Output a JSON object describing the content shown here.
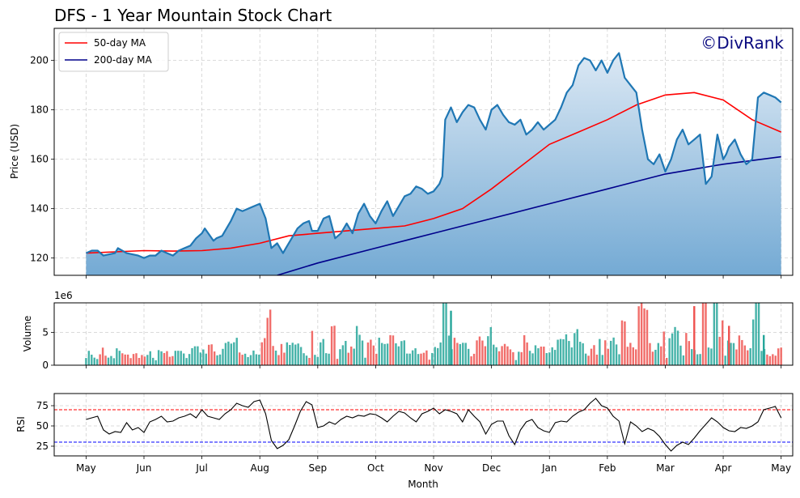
{
  "chart_data": [
    {
      "type": "area",
      "panel": "price",
      "title": "DFS - 1 Year Mountain Stock Chart",
      "watermark": "©DivRank",
      "ylabel": "Price (USD)",
      "ylim": [
        113,
        213
      ],
      "yticks": [
        120,
        140,
        160,
        180,
        200
      ],
      "xlim": [
        -0.55,
        12.2
      ],
      "grid": true,
      "legend_position": "top-left",
      "legend": [
        "50-day MA",
        "200-day MA"
      ],
      "colors": {
        "price": "#1f77b4",
        "ma50": "#ff0000",
        "ma200": "#00008b",
        "fill_top": "#dbe8f4",
        "fill_bottom": "#74aad4"
      },
      "series": [
        {
          "name": "Price",
          "x": [
            0,
            0.1,
            0.2,
            0.3,
            0.5,
            0.55,
            0.7,
            0.9,
            1.0,
            1.1,
            1.2,
            1.3,
            1.4,
            1.5,
            1.6,
            1.7,
            1.8,
            1.9,
            2.0,
            2.05,
            2.2,
            2.25,
            2.35,
            2.5,
            2.6,
            2.7,
            2.9,
            3.0,
            3.1,
            3.2,
            3.3,
            3.4,
            3.45,
            3.55,
            3.65,
            3.75,
            3.85,
            3.9,
            4.0,
            4.1,
            4.2,
            4.3,
            4.4,
            4.5,
            4.6,
            4.7,
            4.8,
            4.9,
            5.0,
            5.1,
            5.2,
            5.3,
            5.4,
            5.5,
            5.6,
            5.7,
            5.8,
            5.9,
            6.0,
            6.1,
            6.15,
            6.2,
            6.3,
            6.4,
            6.5,
            6.6,
            6.7,
            6.8,
            6.9,
            7.0,
            7.1,
            7.2,
            7.3,
            7.4,
            7.5,
            7.6,
            7.7,
            7.8,
            7.9,
            8.0,
            8.1,
            8.2,
            8.3,
            8.4,
            8.5,
            8.6,
            8.7,
            8.8,
            8.9,
            9.0,
            9.1,
            9.2,
            9.3,
            9.4,
            9.5,
            9.6,
            9.7,
            9.8,
            9.9,
            10.0,
            10.1,
            10.2,
            10.3,
            10.4,
            10.5,
            10.6,
            10.7,
            10.8,
            10.9,
            11.0,
            11.05,
            11.1,
            11.2,
            11.3,
            11.4,
            11.5,
            11.6,
            11.7,
            11.8,
            11.9,
            12.0
          ],
          "values": [
            122,
            123,
            123,
            121,
            122,
            124,
            122,
            121,
            120,
            121,
            121,
            123,
            122,
            121,
            123,
            124,
            125,
            128,
            130,
            132,
            127,
            128,
            129,
            135,
            140,
            139,
            141,
            142,
            136,
            124,
            126,
            122,
            124,
            128,
            132,
            134,
            135,
            131,
            131,
            136,
            137,
            128,
            130,
            134,
            130,
            138,
            142,
            137,
            134,
            139,
            143,
            137,
            141,
            145,
            146,
            149,
            148,
            146,
            147,
            150,
            153,
            176,
            181,
            175,
            179,
            182,
            181,
            176,
            172,
            180,
            182,
            178,
            175,
            174,
            176,
            170,
            172,
            175,
            172,
            174,
            176,
            181,
            187,
            190,
            198,
            201,
            200,
            196,
            200,
            195,
            200,
            203,
            193,
            190,
            187,
            172,
            160,
            158,
            162,
            155,
            160,
            168,
            172,
            166,
            168,
            170,
            150,
            153,
            170,
            160,
            162,
            165,
            168,
            162,
            158,
            160,
            185,
            187,
            186,
            185,
            183
          ]
        },
        {
          "name": "50-day MA",
          "x": [
            0,
            0.5,
            1.0,
            1.5,
            2.0,
            2.5,
            3.0,
            3.5,
            4.0,
            4.5,
            5.0,
            5.5,
            6.0,
            6.5,
            7.0,
            7.5,
            8.0,
            8.5,
            9.0,
            9.5,
            10.0,
            10.5,
            11.0,
            11.5,
            12.0
          ],
          "values": [
            122,
            122.5,
            123,
            122.8,
            123,
            124,
            126,
            129,
            130,
            131,
            132,
            133,
            136,
            140,
            148,
            157,
            166,
            171,
            176,
            182,
            186,
            187,
            184,
            176,
            171
          ]
        },
        {
          "name": "200-day MA",
          "x": [
            3.3,
            4.0,
            5.0,
            6.0,
            7.0,
            8.0,
            9.0,
            10.0,
            11.0,
            12.0
          ],
          "values": [
            113,
            118,
            124,
            130,
            136,
            142,
            148,
            154,
            158,
            161
          ]
        }
      ]
    },
    {
      "type": "bar",
      "panel": "volume",
      "ylabel": "Volume",
      "exponent_label": "1e6",
      "ylim": [
        0,
        9.5
      ],
      "yticks": [
        0,
        5
      ],
      "grid": true,
      "colors": {
        "up": "#26a69a",
        "down": "#ef5350"
      },
      "notable_values": [
        {
          "x": 6.3,
          "value": 8.3
        },
        {
          "x": 10.5,
          "value": 9.0
        },
        {
          "x": 11.1,
          "value": 6.0
        },
        {
          "x": 11.7,
          "value": 4.6
        }
      ]
    },
    {
      "type": "line",
      "panel": "rsi",
      "ylabel": "RSI",
      "xlabel": "Month",
      "ylim": [
        13,
        90
      ],
      "yticks": [
        25,
        50,
        75
      ],
      "overbought": 70,
      "oversold": 30,
      "grid": true,
      "colors": {
        "rsi": "#000000",
        "overbought": "#ff0000",
        "oversold": "#0000ff"
      },
      "xticks": [
        "May",
        "Jun",
        "Jul",
        "Aug",
        "Sep",
        "Oct",
        "Nov",
        "Dec",
        "Jan",
        "Feb",
        "Mar",
        "Apr",
        "May"
      ],
      "series": [
        {
          "name": "RSI",
          "x": [
            0,
            0.1,
            0.2,
            0.3,
            0.4,
            0.5,
            0.6,
            0.7,
            0.8,
            0.9,
            1.0,
            1.1,
            1.2,
            1.3,
            1.4,
            1.5,
            1.6,
            1.7,
            1.8,
            1.9,
            2.0,
            2.1,
            2.2,
            2.3,
            2.4,
            2.5,
            2.6,
            2.7,
            2.8,
            2.9,
            3.0,
            3.1,
            3.2,
            3.3,
            3.4,
            3.5,
            3.6,
            3.7,
            3.8,
            3.9,
            4.0,
            4.1,
            4.2,
            4.3,
            4.4,
            4.5,
            4.6,
            4.7,
            4.8,
            4.9,
            5.0,
            5.1,
            5.2,
            5.3,
            5.4,
            5.5,
            5.6,
            5.7,
            5.8,
            5.9,
            6.0,
            6.1,
            6.2,
            6.3,
            6.4,
            6.5,
            6.6,
            6.7,
            6.8,
            6.9,
            7.0,
            7.1,
            7.2,
            7.3,
            7.4,
            7.5,
            7.6,
            7.7,
            7.8,
            7.9,
            8.0,
            8.1,
            8.2,
            8.3,
            8.4,
            8.5,
            8.6,
            8.7,
            8.8,
            8.9,
            9.0,
            9.1,
            9.2,
            9.3,
            9.4,
            9.5,
            9.6,
            9.7,
            9.8,
            9.9,
            10.0,
            10.1,
            10.2,
            10.3,
            10.4,
            10.5,
            10.6,
            10.7,
            10.8,
            10.9,
            11.0,
            11.1,
            11.2,
            11.3,
            11.4,
            11.5,
            11.6,
            11.7,
            11.8,
            11.9,
            12.0
          ],
          "values": [
            58,
            60,
            62,
            45,
            40,
            43,
            42,
            54,
            45,
            48,
            42,
            55,
            58,
            62,
            55,
            56,
            60,
            62,
            65,
            60,
            70,
            62,
            60,
            58,
            65,
            70,
            78,
            75,
            73,
            80,
            82,
            65,
            32,
            22,
            26,
            33,
            50,
            68,
            80,
            76,
            48,
            50,
            55,
            52,
            58,
            62,
            60,
            63,
            62,
            65,
            64,
            60,
            55,
            62,
            68,
            66,
            60,
            55,
            65,
            68,
            72,
            65,
            70,
            68,
            65,
            55,
            70,
            62,
            55,
            40,
            52,
            56,
            56,
            38,
            27,
            45,
            55,
            58,
            48,
            44,
            42,
            54,
            56,
            55,
            62,
            67,
            70,
            78,
            84,
            75,
            72,
            62,
            56,
            28,
            55,
            50,
            43,
            47,
            44,
            37,
            27,
            19,
            26,
            30,
            27,
            35,
            44,
            52,
            60,
            55,
            48,
            44,
            43,
            48,
            47,
            50,
            55,
            70,
            72,
            74,
            60
          ]
        }
      ]
    }
  ]
}
